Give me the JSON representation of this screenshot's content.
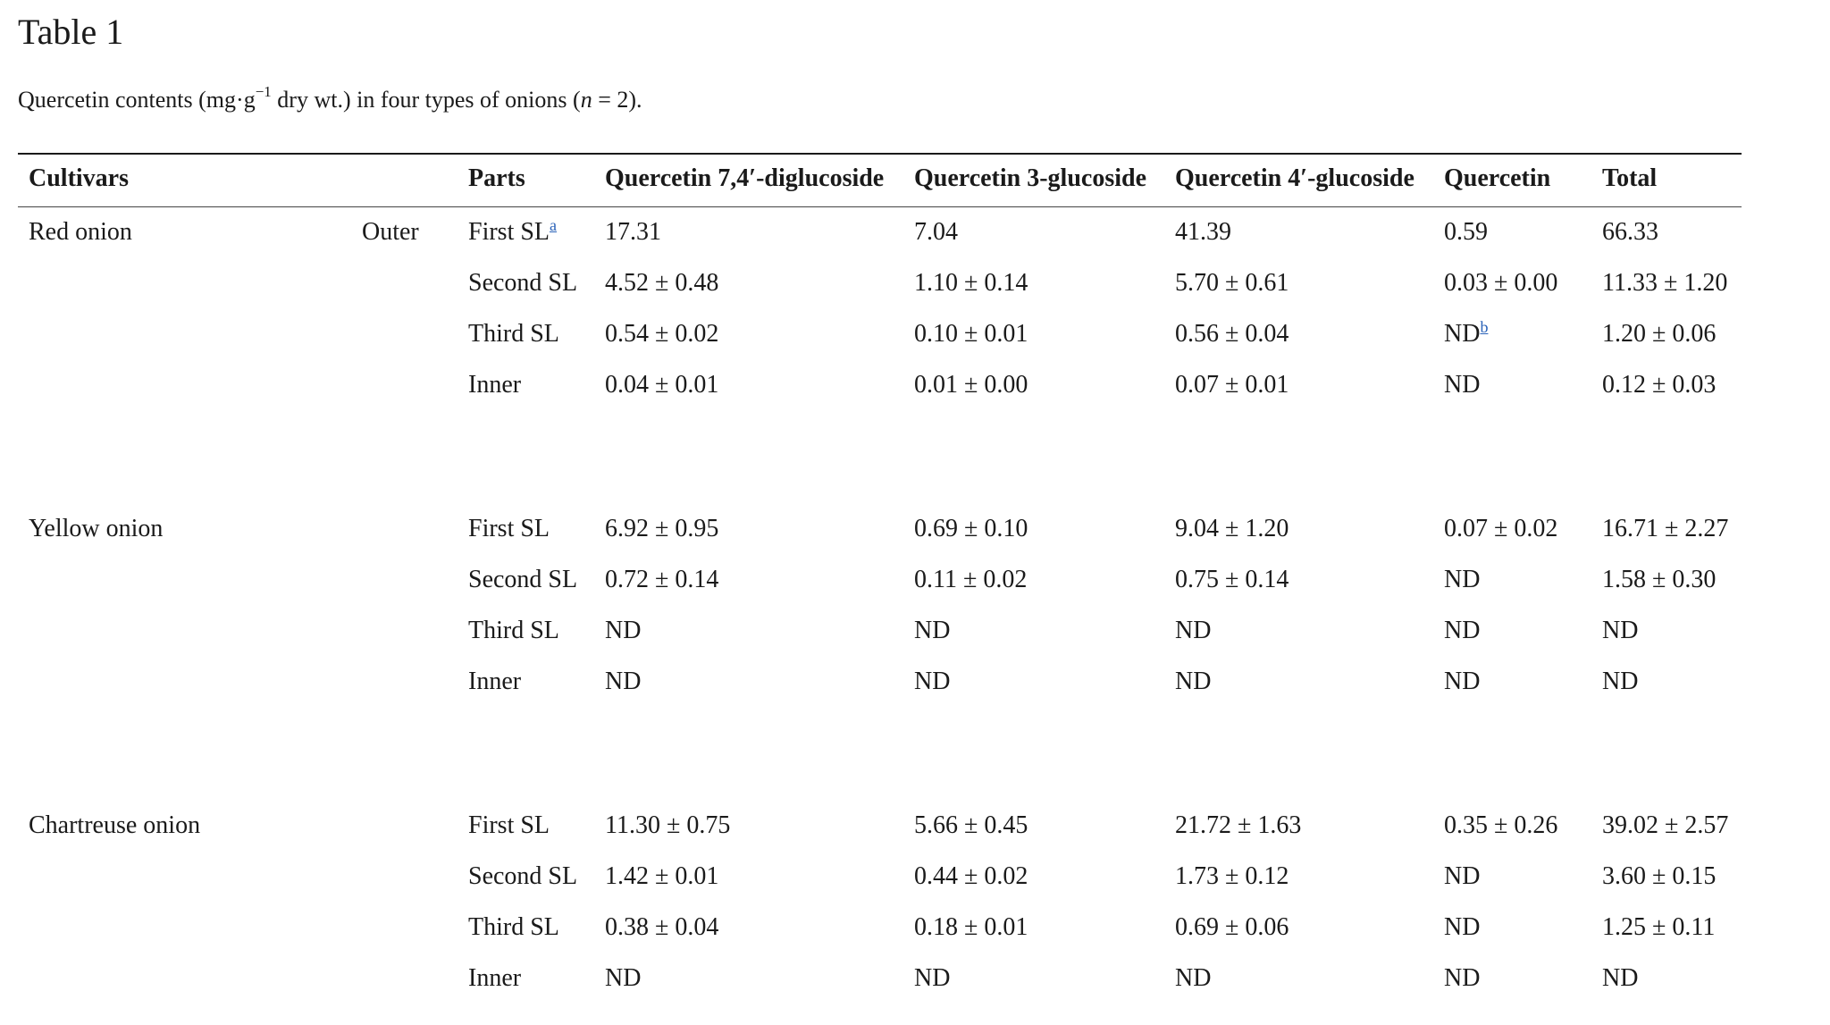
{
  "title": "Table 1",
  "caption": {
    "before_sup": "Quercetin contents (mg·g",
    "sup": "−1",
    "after_sup": " dry wt.) in four types of onions (",
    "n_symbol": "n",
    "after_n": " = 2)."
  },
  "headers": {
    "cultivars": "Cultivars",
    "parts": "Parts",
    "q74_diglucoside": "Quercetin 7,4′-diglucoside",
    "q3_glucoside": "Quercetin 3-glucoside",
    "q4_glucoside": "Quercetin 4′-glucoside",
    "quercetin": "Quercetin",
    "total": "Total"
  },
  "groups": [
    {
      "cultivar": "Red onion",
      "position": "Outer",
      "rows": [
        {
          "part": "First SL",
          "part_footnote": "a",
          "q74": "17.31",
          "q3": "7.04",
          "q4": "41.39",
          "quercetin": "0.59",
          "quercetin_footnote": "",
          "total": "66.33"
        },
        {
          "part": "Second SL",
          "part_footnote": "",
          "q74": "4.52 ± 0.48",
          "q3": "1.10 ± 0.14",
          "q4": "5.70 ± 0.61",
          "quercetin": "0.03 ± 0.00",
          "quercetin_footnote": "",
          "total": "11.33 ± 1.20"
        },
        {
          "part": "Third SL",
          "part_footnote": "",
          "q74": "0.54 ± 0.02",
          "q3": "0.10 ± 0.01",
          "q4": "0.56 ± 0.04",
          "quercetin": "ND",
          "quercetin_footnote": "b",
          "total": "1.20 ± 0.06"
        },
        {
          "part": "Inner",
          "part_footnote": "",
          "q74": "0.04 ± 0.01",
          "q3": "0.01 ± 0.00",
          "q4": "0.07 ± 0.01",
          "quercetin": "ND",
          "quercetin_footnote": "",
          "total": "0.12 ± 0.03"
        }
      ]
    },
    {
      "cultivar": "Yellow onion",
      "position": "",
      "rows": [
        {
          "part": "First SL",
          "part_footnote": "",
          "q74": "6.92 ± 0.95",
          "q3": "0.69 ± 0.10",
          "q4": "9.04 ± 1.20",
          "quercetin": "0.07 ± 0.02",
          "quercetin_footnote": "",
          "total": "16.71 ± 2.27"
        },
        {
          "part": "Second SL",
          "part_footnote": "",
          "q74": "0.72 ± 0.14",
          "q3": "0.11 ± 0.02",
          "q4": "0.75 ± 0.14",
          "quercetin": "ND",
          "quercetin_footnote": "",
          "total": "1.58 ± 0.30"
        },
        {
          "part": "Third SL",
          "part_footnote": "",
          "q74": "ND",
          "q3": "ND",
          "q4": "ND",
          "quercetin": "ND",
          "quercetin_footnote": "",
          "total": "ND"
        },
        {
          "part": "Inner",
          "part_footnote": "",
          "q74": "ND",
          "q3": "ND",
          "q4": "ND",
          "quercetin": "ND",
          "quercetin_footnote": "",
          "total": "ND"
        }
      ]
    },
    {
      "cultivar": "Chartreuse onion",
      "position": "",
      "rows": [
        {
          "part": "First SL",
          "part_footnote": "",
          "q74": "11.30 ± 0.75",
          "q3": "5.66 ± 0.45",
          "q4": "21.72 ± 1.63",
          "quercetin": "0.35 ± 0.26",
          "quercetin_footnote": "",
          "total": "39.02 ± 2.57"
        },
        {
          "part": "Second SL",
          "part_footnote": "",
          "q74": "1.42 ± 0.01",
          "q3": "0.44 ± 0.02",
          "q4": "1.73 ± 0.12",
          "quercetin": "ND",
          "quercetin_footnote": "",
          "total": "3.60 ± 0.15"
        },
        {
          "part": "Third SL",
          "part_footnote": "",
          "q74": "0.38 ± 0.04",
          "q3": "0.18 ± 0.01",
          "q4": "0.69 ± 0.06",
          "quercetin": "ND",
          "quercetin_footnote": "",
          "total": "1.25 ± 0.11"
        },
        {
          "part": "Inner",
          "part_footnote": "",
          "q74": "ND",
          "q3": "ND",
          "q4": "ND",
          "quercetin": "ND",
          "quercetin_footnote": "",
          "total": "ND"
        }
      ]
    }
  ]
}
